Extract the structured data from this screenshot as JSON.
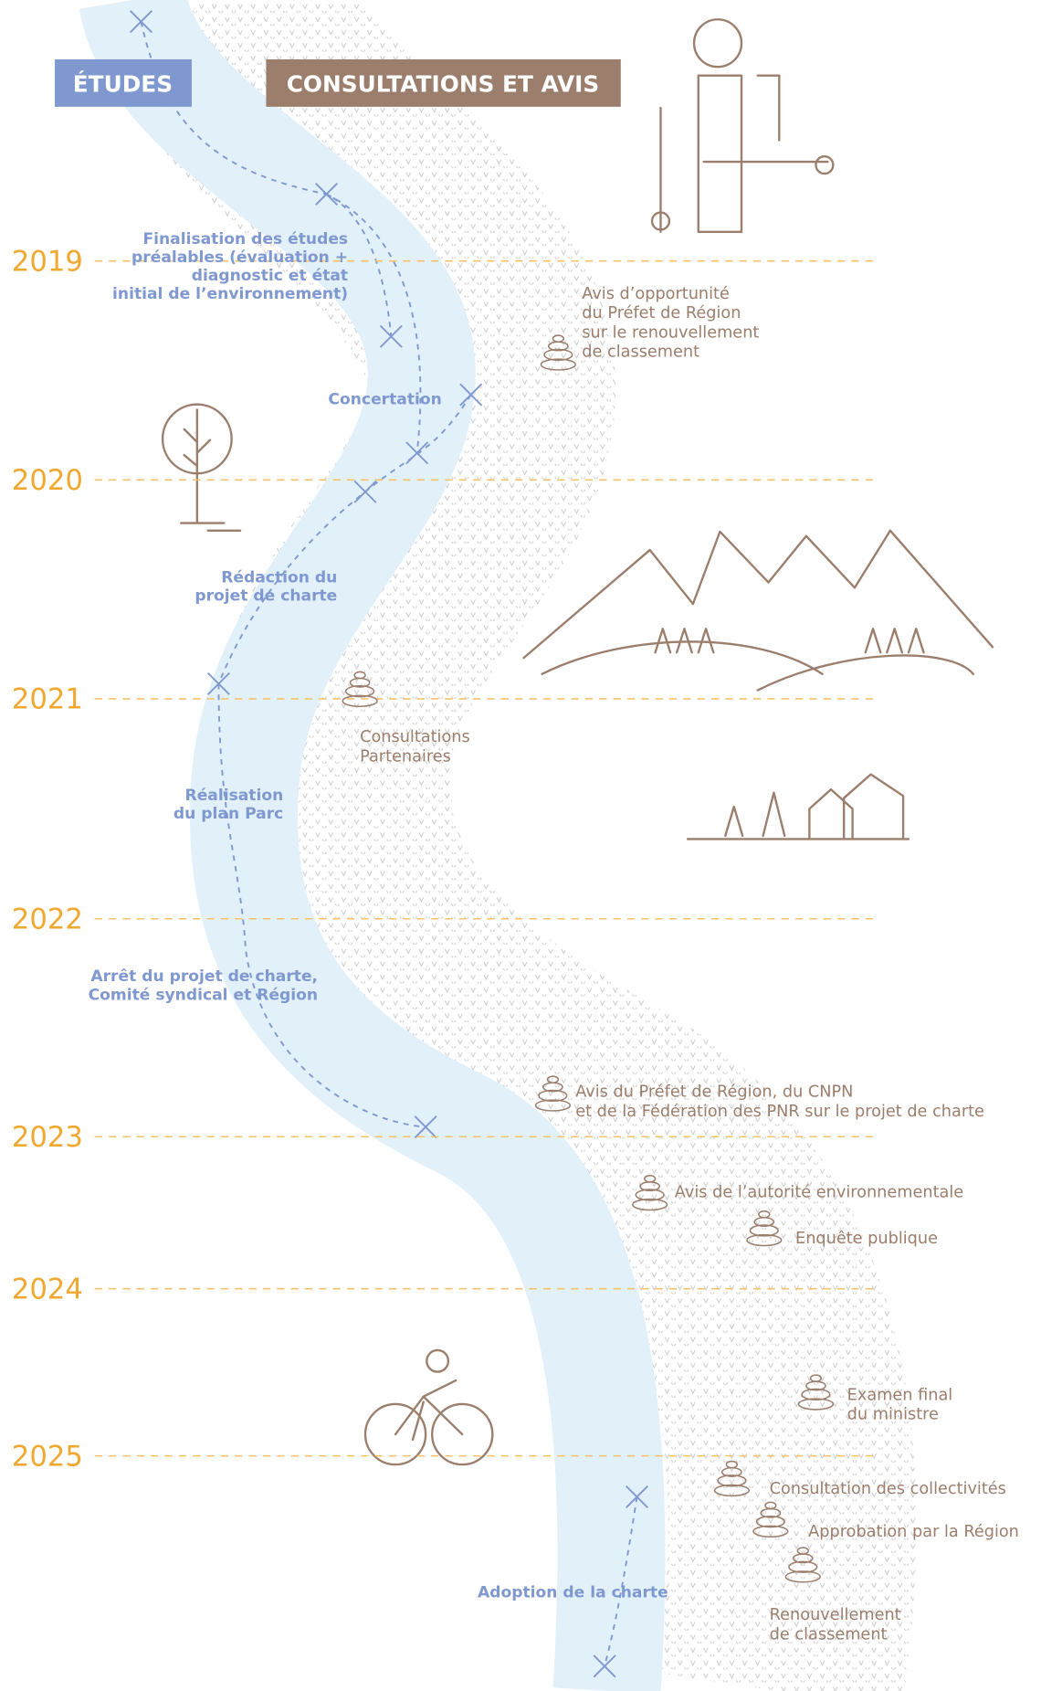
{
  "headers": {
    "studies": "ÉTUDES",
    "consultations": "CONSULTATIONS ET AVIS"
  },
  "years": [
    "2019",
    "2020",
    "2021",
    "2022",
    "2023",
    "2024",
    "2025"
  ],
  "studies": [
    [
      "Finalisation des études",
      "préalables (évaluation +",
      "diagnostic et état",
      "initial de l’environnement)"
    ],
    [
      "Concertation"
    ],
    [
      "Rédaction du",
      "projet de charte"
    ],
    [
      "Réalisation",
      "du plan Parc"
    ],
    [
      "Arrêt du projet de charte,",
      "Comité syndical et Région"
    ],
    [
      "Adoption de la charte"
    ]
  ],
  "consultations": [
    [
      "Avis d’opportunité",
      "du Préfet de Région",
      "sur le renouvellement",
      "de classement"
    ],
    [
      "Consultations",
      "Partenaires"
    ],
    [
      "Avis du Préfet de Région, du CNPN",
      "et de la Fédération des PNR sur le projet de charte"
    ],
    [
      "Avis de l’autorité environnementale"
    ],
    [
      "Enquête publique"
    ],
    [
      "Examen final",
      "du ministre"
    ],
    [
      "Consultation des collectivités"
    ],
    [
      "Approbation par la Région"
    ],
    [
      "Renouvellement",
      "de classement"
    ]
  ]
}
